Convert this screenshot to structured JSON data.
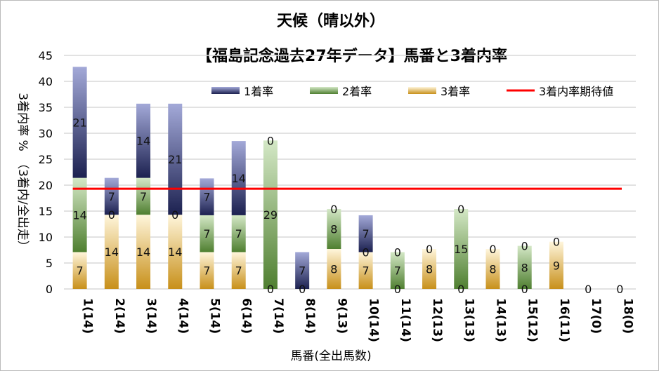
{
  "chart_data": {
    "type": "bar",
    "stacked": true,
    "title": "天候（晴以外）",
    "subtitle": "【福島記念過去27年データ】馬番と3着内率",
    "xlabel": "馬番(全出馬数)",
    "ylabel": "3着内率 %　（3着内/全出走）",
    "ylim": [
      0,
      45
    ],
    "yticks": [
      "0",
      "5",
      "10",
      "15",
      "20",
      "25",
      "30",
      "35",
      "40",
      "45"
    ],
    "grid": true,
    "legend_position": "top",
    "categories": [
      "1(14)",
      "2(14)",
      "3(14)",
      "4(14)",
      "5(14)",
      "6(14)",
      "7(14)",
      "8(14)",
      "9(13)",
      "10(14)",
      "11(14)",
      "12(13)",
      "13(13)",
      "14(13)",
      "15(12)",
      "16(11)",
      "17(0)",
      "18(0)"
    ],
    "series": [
      {
        "name": "3着率",
        "color": "#c8901a",
        "values": [
          7.1,
          14.3,
          14.3,
          14.3,
          7.1,
          7.1,
          0,
          0,
          7.7,
          7.1,
          0,
          7.7,
          0,
          7.7,
          0,
          9.1,
          0,
          0
        ],
        "labels": [
          "7",
          "14",
          "14",
          "14",
          "7",
          "7",
          "0",
          "0",
          "8",
          "7",
          "0",
          "8",
          "0",
          "8",
          "0",
          "9",
          "0",
          "0"
        ]
      },
      {
        "name": "2着率",
        "color": "#5a8a3a",
        "values": [
          14.3,
          0,
          7.1,
          0,
          7.1,
          7.1,
          28.6,
          0,
          7.7,
          0,
          7.1,
          0,
          15.4,
          0,
          8.3,
          0,
          0,
          0
        ],
        "labels": [
          "14",
          "0",
          "7",
          "0",
          "7",
          "7",
          "29",
          "",
          "8",
          "0",
          "7",
          "0",
          "15",
          "0",
          "8",
          "0",
          "",
          ""
        ]
      },
      {
        "name": "1着率",
        "color": "#2a3170",
        "values": [
          21.4,
          7.1,
          14.3,
          21.4,
          7.1,
          14.3,
          0,
          7.1,
          0,
          7.1,
          0,
          0,
          0,
          0,
          0,
          0,
          0,
          0
        ],
        "labels": [
          "21",
          "7",
          "14",
          "21",
          "7",
          "14",
          "0",
          "7",
          "0",
          "7",
          "0",
          "",
          "0",
          "",
          "0",
          "",
          "",
          ""
        ]
      }
    ],
    "reference_line": {
      "name": "3着内率期待値",
      "value": 19.3,
      "color": "#ff0000"
    }
  }
}
